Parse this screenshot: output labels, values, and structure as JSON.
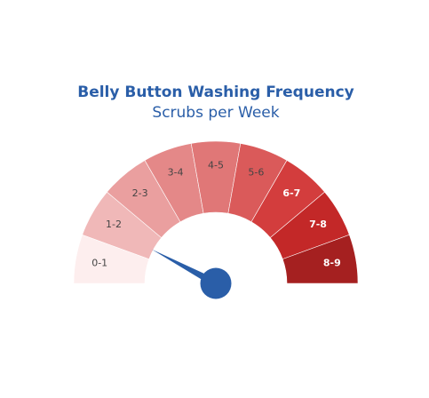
{
  "chart_data": {
    "type": "gauge",
    "title": "Belly Button Washing Frequency",
    "subtitle": "Scrubs per Week",
    "range": [
      0,
      9
    ],
    "segments": [
      {
        "label": "0-1",
        "from": 0,
        "to": 1,
        "color": "#fdeeee",
        "text_color": "#444444"
      },
      {
        "label": "1-2",
        "from": 1,
        "to": 2,
        "color": "#f0b8b8",
        "text_color": "#444444"
      },
      {
        "label": "2-3",
        "from": 2,
        "to": 3,
        "color": "#ea9f9f",
        "text_color": "#444444"
      },
      {
        "label": "3-4",
        "from": 3,
        "to": 4,
        "color": "#e48888",
        "text_color": "#444444"
      },
      {
        "label": "4-5",
        "from": 4,
        "to": 5,
        "color": "#e07777",
        "text_color": "#444444"
      },
      {
        "label": "5-6",
        "from": 5,
        "to": 6,
        "color": "#da5a5a",
        "text_color": "#444444"
      },
      {
        "label": "6-7",
        "from": 6,
        "to": 7,
        "color": "#d33d3d",
        "text_color": "#ffffff"
      },
      {
        "label": "7-8",
        "from": 7,
        "to": 8,
        "color": "#c32828",
        "text_color": "#ffffff"
      },
      {
        "label": "8-9",
        "from": 8,
        "to": 9,
        "color": "#a52020",
        "text_color": "#ffffff"
      }
    ],
    "value": 1.4,
    "title_color": "#2a5ea8",
    "needle_color": "#2a5ea8"
  }
}
